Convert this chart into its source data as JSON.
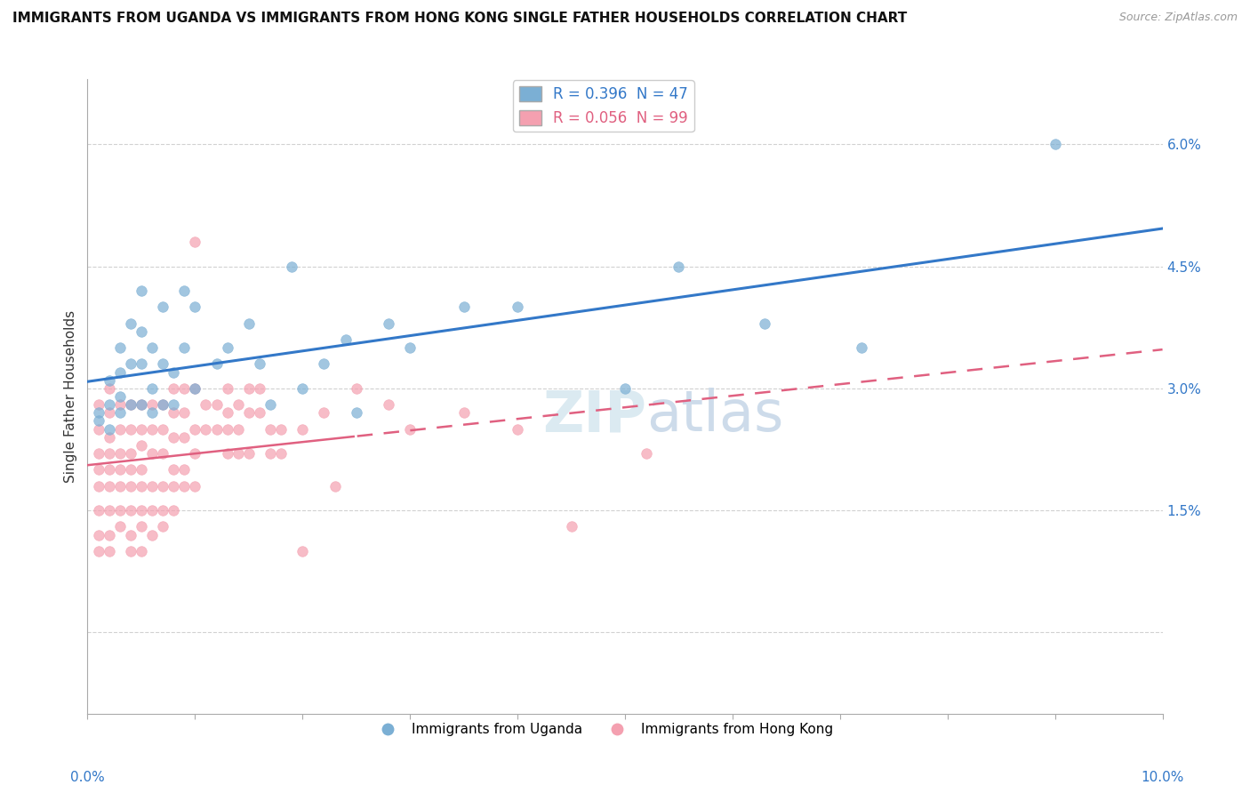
{
  "title": "IMMIGRANTS FROM UGANDA VS IMMIGRANTS FROM HONG KONG SINGLE FATHER HOUSEHOLDS CORRELATION CHART",
  "source": "Source: ZipAtlas.com",
  "ylabel": "Single Father Households",
  "y_ticks": [
    0.0,
    0.015,
    0.03,
    0.045,
    0.06
  ],
  "y_tick_labels": [
    "",
    "1.5%",
    "3.0%",
    "4.5%",
    "6.0%"
  ],
  "uganda_color": "#7BAFD4",
  "hong_kong_color": "#F4A0B0",
  "uganda_line_color": "#3378C8",
  "hk_line_color": "#E06080",
  "uganda_R": 0.396,
  "uganda_N": 47,
  "hong_kong_R": 0.056,
  "hong_kong_N": 99,
  "legend_label_uganda": "Immigrants from Uganda",
  "legend_label_hk": "Immigrants from Hong Kong",
  "background_color": "#ffffff",
  "grid_color": "#cccccc",
  "uganda_points": [
    [
      0.001,
      0.027
    ],
    [
      0.001,
      0.026
    ],
    [
      0.002,
      0.031
    ],
    [
      0.002,
      0.028
    ],
    [
      0.002,
      0.025
    ],
    [
      0.003,
      0.035
    ],
    [
      0.003,
      0.032
    ],
    [
      0.003,
      0.029
    ],
    [
      0.003,
      0.027
    ],
    [
      0.004,
      0.038
    ],
    [
      0.004,
      0.033
    ],
    [
      0.004,
      0.028
    ],
    [
      0.005,
      0.042
    ],
    [
      0.005,
      0.037
    ],
    [
      0.005,
      0.033
    ],
    [
      0.005,
      0.028
    ],
    [
      0.006,
      0.035
    ],
    [
      0.006,
      0.03
    ],
    [
      0.006,
      0.027
    ],
    [
      0.007,
      0.04
    ],
    [
      0.007,
      0.033
    ],
    [
      0.007,
      0.028
    ],
    [
      0.008,
      0.032
    ],
    [
      0.008,
      0.028
    ],
    [
      0.009,
      0.042
    ],
    [
      0.009,
      0.035
    ],
    [
      0.01,
      0.04
    ],
    [
      0.01,
      0.03
    ],
    [
      0.012,
      0.033
    ],
    [
      0.013,
      0.035
    ],
    [
      0.015,
      0.038
    ],
    [
      0.016,
      0.033
    ],
    [
      0.017,
      0.028
    ],
    [
      0.019,
      0.045
    ],
    [
      0.02,
      0.03
    ],
    [
      0.022,
      0.033
    ],
    [
      0.024,
      0.036
    ],
    [
      0.025,
      0.027
    ],
    [
      0.028,
      0.038
    ],
    [
      0.03,
      0.035
    ],
    [
      0.035,
      0.04
    ],
    [
      0.04,
      0.04
    ],
    [
      0.05,
      0.03
    ],
    [
      0.055,
      0.045
    ],
    [
      0.063,
      0.038
    ],
    [
      0.072,
      0.035
    ],
    [
      0.09,
      0.06
    ]
  ],
  "hk_points": [
    [
      0.001,
      0.028
    ],
    [
      0.001,
      0.025
    ],
    [
      0.001,
      0.022
    ],
    [
      0.001,
      0.02
    ],
    [
      0.001,
      0.018
    ],
    [
      0.001,
      0.015
    ],
    [
      0.001,
      0.012
    ],
    [
      0.001,
      0.01
    ],
    [
      0.002,
      0.03
    ],
    [
      0.002,
      0.027
    ],
    [
      0.002,
      0.024
    ],
    [
      0.002,
      0.022
    ],
    [
      0.002,
      0.02
    ],
    [
      0.002,
      0.018
    ],
    [
      0.002,
      0.015
    ],
    [
      0.002,
      0.012
    ],
    [
      0.002,
      0.01
    ],
    [
      0.003,
      0.028
    ],
    [
      0.003,
      0.025
    ],
    [
      0.003,
      0.022
    ],
    [
      0.003,
      0.02
    ],
    [
      0.003,
      0.018
    ],
    [
      0.003,
      0.015
    ],
    [
      0.003,
      0.013
    ],
    [
      0.004,
      0.028
    ],
    [
      0.004,
      0.025
    ],
    [
      0.004,
      0.022
    ],
    [
      0.004,
      0.02
    ],
    [
      0.004,
      0.018
    ],
    [
      0.004,
      0.015
    ],
    [
      0.004,
      0.012
    ],
    [
      0.004,
      0.01
    ],
    [
      0.005,
      0.028
    ],
    [
      0.005,
      0.025
    ],
    [
      0.005,
      0.023
    ],
    [
      0.005,
      0.02
    ],
    [
      0.005,
      0.018
    ],
    [
      0.005,
      0.015
    ],
    [
      0.005,
      0.013
    ],
    [
      0.005,
      0.01
    ],
    [
      0.006,
      0.028
    ],
    [
      0.006,
      0.025
    ],
    [
      0.006,
      0.022
    ],
    [
      0.006,
      0.018
    ],
    [
      0.006,
      0.015
    ],
    [
      0.006,
      0.012
    ],
    [
      0.007,
      0.028
    ],
    [
      0.007,
      0.025
    ],
    [
      0.007,
      0.022
    ],
    [
      0.007,
      0.018
    ],
    [
      0.007,
      0.015
    ],
    [
      0.007,
      0.013
    ],
    [
      0.008,
      0.03
    ],
    [
      0.008,
      0.027
    ],
    [
      0.008,
      0.024
    ],
    [
      0.008,
      0.02
    ],
    [
      0.008,
      0.018
    ],
    [
      0.008,
      0.015
    ],
    [
      0.009,
      0.03
    ],
    [
      0.009,
      0.027
    ],
    [
      0.009,
      0.024
    ],
    [
      0.009,
      0.02
    ],
    [
      0.009,
      0.018
    ],
    [
      0.01,
      0.048
    ],
    [
      0.01,
      0.03
    ],
    [
      0.01,
      0.025
    ],
    [
      0.01,
      0.022
    ],
    [
      0.01,
      0.018
    ],
    [
      0.011,
      0.028
    ],
    [
      0.011,
      0.025
    ],
    [
      0.012,
      0.028
    ],
    [
      0.012,
      0.025
    ],
    [
      0.013,
      0.03
    ],
    [
      0.013,
      0.027
    ],
    [
      0.013,
      0.025
    ],
    [
      0.013,
      0.022
    ],
    [
      0.014,
      0.028
    ],
    [
      0.014,
      0.025
    ],
    [
      0.014,
      0.022
    ],
    [
      0.015,
      0.03
    ],
    [
      0.015,
      0.027
    ],
    [
      0.015,
      0.022
    ],
    [
      0.016,
      0.03
    ],
    [
      0.016,
      0.027
    ],
    [
      0.017,
      0.025
    ],
    [
      0.017,
      0.022
    ],
    [
      0.018,
      0.025
    ],
    [
      0.018,
      0.022
    ],
    [
      0.02,
      0.025
    ],
    [
      0.02,
      0.01
    ],
    [
      0.022,
      0.027
    ],
    [
      0.023,
      0.018
    ],
    [
      0.025,
      0.03
    ],
    [
      0.028,
      0.028
    ],
    [
      0.03,
      0.025
    ],
    [
      0.035,
      0.027
    ],
    [
      0.04,
      0.025
    ],
    [
      0.045,
      0.013
    ],
    [
      0.052,
      0.022
    ]
  ]
}
